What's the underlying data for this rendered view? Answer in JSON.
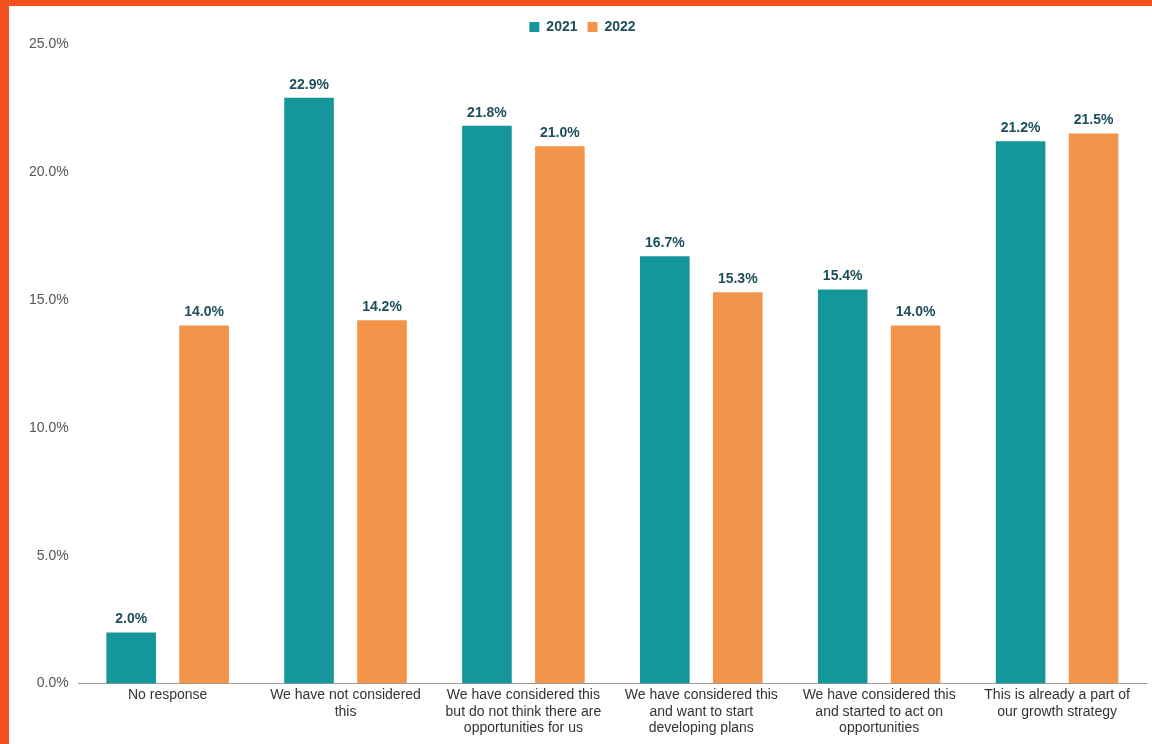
{
  "chart_data": {
    "type": "bar",
    "categories": [
      "No response",
      "We have not considered this",
      "We have considered this but do not think there are opportunities for us",
      "We have considered this and want to start developing plans",
      "We have considered this and started to act on opportunities",
      "This is already a part of our growth strategy"
    ],
    "series": [
      {
        "name": "2021",
        "color": "#15969a",
        "values": [
          2.0,
          22.9,
          21.8,
          16.7,
          15.4,
          21.2
        ],
        "value_labels": [
          "2.0%",
          "22.9%",
          "21.8%",
          "16.7%",
          "15.4%",
          "21.2%"
        ]
      },
      {
        "name": "2022",
        "color": "#f2944a",
        "values": [
          14.0,
          14.2,
          21.0,
          15.3,
          14.0,
          21.5
        ],
        "value_labels": [
          "14.0%",
          "14.2%",
          "21.0%",
          "15.3%",
          "14.0%",
          "21.5%"
        ]
      }
    ],
    "ylim": [
      0,
      25
    ],
    "yticks": [
      {
        "value": 0,
        "label": "0.0%"
      },
      {
        "value": 5,
        "label": "5.0%"
      },
      {
        "value": 10,
        "label": "10.0%"
      },
      {
        "value": 15,
        "label": "15.0%"
      },
      {
        "value": 20,
        "label": "20.0%"
      },
      {
        "value": 25,
        "label": "25.0%"
      }
    ],
    "grid": false,
    "legend": "top"
  }
}
